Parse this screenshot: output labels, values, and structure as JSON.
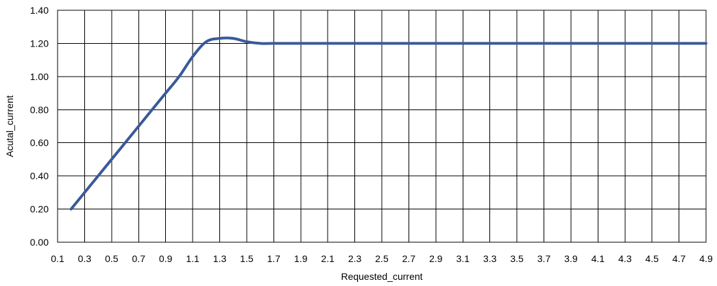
{
  "chart_data": {
    "type": "line",
    "title": "",
    "xlabel": "Requested_current",
    "ylabel": "Acutal_current",
    "xlim": [
      0.1,
      4.9
    ],
    "ylim": [
      0.0,
      1.4
    ],
    "x_tick_labels": [
      "0.1",
      "0.3",
      "0.5",
      "0.7",
      "0.9",
      "1.1",
      "1.3",
      "1.5",
      "1.7",
      "1.9",
      "2.1",
      "2.3",
      "2.5",
      "2.7",
      "2.9",
      "3.1",
      "3.3",
      "3.5",
      "3.7",
      "3.9",
      "4.1",
      "4.3",
      "4.5",
      "4.7",
      "4.9"
    ],
    "y_tick_labels": [
      "0.00",
      "0.20",
      "0.40",
      "0.60",
      "0.80",
      "1.00",
      "1.20",
      "1.40"
    ],
    "grid": true,
    "legend": "none",
    "series_color": "#3a5a98",
    "series": [
      {
        "x": [
          0.2,
          0.3,
          0.4,
          0.5,
          0.6,
          0.7,
          0.8,
          0.9,
          1.0,
          1.1,
          1.2,
          1.3,
          1.4,
          1.5,
          1.6,
          1.7,
          1.8,
          1.9,
          2.0,
          2.1,
          2.2,
          2.3,
          2.4,
          2.5,
          2.6,
          2.7,
          2.8,
          2.9,
          3.0,
          3.1,
          3.2,
          3.3,
          3.4,
          3.5,
          3.6,
          3.7,
          3.8,
          3.9,
          4.0,
          4.1,
          4.2,
          4.3,
          4.4,
          4.5,
          4.6,
          4.7,
          4.8,
          4.9
        ],
        "y": [
          0.2,
          0.3,
          0.4,
          0.5,
          0.6,
          0.7,
          0.8,
          0.9,
          1.0,
          1.12,
          1.21,
          1.23,
          1.23,
          1.21,
          1.2,
          1.2,
          1.2,
          1.2,
          1.2,
          1.2,
          1.2,
          1.2,
          1.2,
          1.2,
          1.2,
          1.2,
          1.2,
          1.2,
          1.2,
          1.2,
          1.2,
          1.2,
          1.2,
          1.2,
          1.2,
          1.2,
          1.2,
          1.2,
          1.2,
          1.2,
          1.2,
          1.2,
          1.2,
          1.2,
          1.2,
          1.2,
          1.2,
          1.2
        ]
      }
    ]
  }
}
